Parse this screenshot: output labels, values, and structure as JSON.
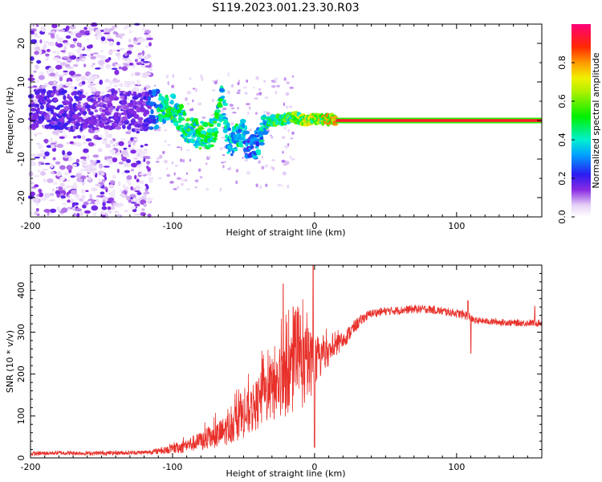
{
  "title": "S119.2023.001.23.30.R03",
  "chart_data": [
    {
      "type": "heatmap",
      "xlabel": "Height of straight line (km)",
      "ylabel": "Frequency (Hz)",
      "xlim": [
        -200,
        160
      ],
      "ylim": [
        -25,
        25
      ],
      "xticks": [
        -200,
        -100,
        0,
        100
      ],
      "yticks": [
        -20,
        -10,
        0,
        10,
        20
      ],
      "grid": false,
      "colorbar": {
        "label": "Normalized spectral amplitude",
        "range": [
          0,
          1
        ],
        "ticks": [
          "0.0",
          "0.2",
          "0.4",
          "0.6",
          "0.8"
        ],
        "colormap": "rainbow (white → purple → blue → cyan → green → yellow → orange → red → magenta)"
      },
      "features": {
        "noise_region_x": [
          -200,
          -115
        ],
        "track_points_x_y_amp": [
          [
            -200,
            3,
            0.25
          ],
          [
            -180,
            3,
            0.3
          ],
          [
            -160,
            2,
            0.25
          ],
          [
            -140,
            3,
            0.25
          ],
          [
            -120,
            2,
            0.25
          ],
          [
            -110,
            3,
            0.5
          ],
          [
            -100,
            3,
            0.55
          ],
          [
            -95,
            1,
            0.5
          ],
          [
            -90,
            -2,
            0.55
          ],
          [
            -80,
            -4,
            0.6
          ],
          [
            -70,
            -3,
            0.55
          ],
          [
            -65,
            5,
            0.5
          ],
          [
            -60,
            -6,
            0.4
          ],
          [
            -55,
            -4,
            0.5
          ],
          [
            -50,
            -3,
            0.4
          ],
          [
            -45,
            -8,
            0.3
          ],
          [
            -40,
            -6,
            0.4
          ],
          [
            -35,
            -1,
            0.5
          ],
          [
            -30,
            0,
            0.55
          ],
          [
            -25,
            0,
            0.6
          ],
          [
            -20,
            0.5,
            0.6
          ],
          [
            -15,
            1,
            0.65
          ],
          [
            -10,
            0.5,
            0.7
          ],
          [
            -5,
            0,
            0.75
          ],
          [
            0,
            0.5,
            0.75
          ],
          [
            10,
            0.3,
            0.8
          ],
          [
            15,
            0,
            0.9
          ]
        ],
        "steady_line": {
          "x_range": [
            15,
            160
          ],
          "y": 0,
          "amplitude": 0.92
        }
      }
    },
    {
      "type": "line",
      "xlabel": "Height of straight line (km)",
      "ylabel": "SNR (10 * v/v)",
      "xlim": [
        -200,
        160
      ],
      "ylim": [
        0,
        460
      ],
      "xticks": [
        -200,
        -100,
        0,
        100
      ],
      "yticks": [
        0,
        100,
        200,
        300,
        400
      ],
      "grid": false,
      "color": "#e8302a",
      "envelope": [
        [
          -200,
          10,
          5
        ],
        [
          -180,
          12,
          5
        ],
        [
          -160,
          11,
          5
        ],
        [
          -140,
          12,
          5
        ],
        [
          -120,
          13,
          5
        ],
        [
          -105,
          18,
          8
        ],
        [
          -95,
          25,
          15
        ],
        [
          -85,
          35,
          20
        ],
        [
          -75,
          45,
          25
        ],
        [
          -65,
          60,
          35
        ],
        [
          -55,
          85,
          45
        ],
        [
          -45,
          110,
          55
        ],
        [
          -35,
          150,
          70
        ],
        [
          -25,
          175,
          85
        ],
        [
          -15,
          200,
          95
        ],
        [
          -5,
          220,
          100
        ],
        [
          0,
          230,
          60
        ],
        [
          10,
          250,
          30
        ],
        [
          20,
          280,
          20
        ],
        [
          25,
          300,
          18
        ],
        [
          30,
          320,
          15
        ],
        [
          35,
          335,
          12
        ],
        [
          40,
          345,
          10
        ],
        [
          50,
          350,
          10
        ],
        [
          60,
          352,
          10
        ],
        [
          70,
          355,
          10
        ],
        [
          80,
          355,
          10
        ],
        [
          90,
          350,
          10
        ],
        [
          100,
          345,
          10
        ],
        [
          108,
          340,
          12
        ],
        [
          112,
          328,
          8
        ],
        [
          125,
          325,
          8
        ],
        [
          140,
          322,
          8
        ],
        [
          160,
          322,
          8
        ]
      ],
      "spikes": [
        [
          -22,
          415
        ],
        [
          -15,
          360
        ],
        [
          -10,
          340
        ],
        [
          -4,
          300
        ],
        [
          -1,
          460
        ],
        [
          0,
          25
        ],
        [
          110,
          250
        ],
        [
          108,
          375
        ],
        [
          155,
          362
        ]
      ]
    }
  ]
}
